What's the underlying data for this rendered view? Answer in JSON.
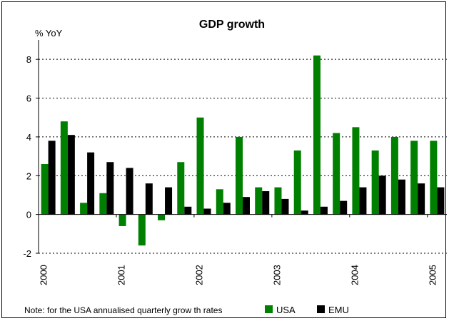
{
  "chart_data": {
    "type": "bar",
    "title": "GDP growth",
    "ylabel": "% YoY",
    "xlabel": "",
    "ylim": [
      -2,
      9
    ],
    "yticks": [
      -2,
      0,
      2,
      4,
      6,
      8
    ],
    "year_labels": [
      "2000",
      "2001",
      "2002",
      "2003",
      "2004",
      "2005"
    ],
    "categories": [
      "2000Q1",
      "2000Q2",
      "2000Q3",
      "2000Q4",
      "2001Q1",
      "2001Q2",
      "2001Q3",
      "2001Q4",
      "2002Q1",
      "2002Q2",
      "2002Q3",
      "2002Q4",
      "2003Q1",
      "2003Q2",
      "2003Q3",
      "2003Q4",
      "2004Q1",
      "2004Q2",
      "2004Q3",
      "2004Q4",
      "2005Q1"
    ],
    "series": [
      {
        "name": "USA",
        "color": "#008000",
        "values": [
          2.6,
          4.8,
          0.6,
          1.1,
          -0.6,
          -1.6,
          -0.3,
          2.7,
          5.0,
          1.3,
          4.0,
          1.4,
          1.4,
          3.3,
          8.2,
          4.2,
          4.5,
          3.3,
          4.0,
          3.8,
          3.8
        ]
      },
      {
        "name": "EMU",
        "color": "#000000",
        "values": [
          3.8,
          4.1,
          3.2,
          2.7,
          2.4,
          1.6,
          1.4,
          0.4,
          0.3,
          0.6,
          0.9,
          1.2,
          0.8,
          0.2,
          0.4,
          0.7,
          1.4,
          2.0,
          1.8,
          1.6,
          1.4
        ]
      }
    ],
    "note": "Note: for the USA annualised quarterly grow th rates",
    "legend_position": "bottom-right",
    "grid": true
  }
}
